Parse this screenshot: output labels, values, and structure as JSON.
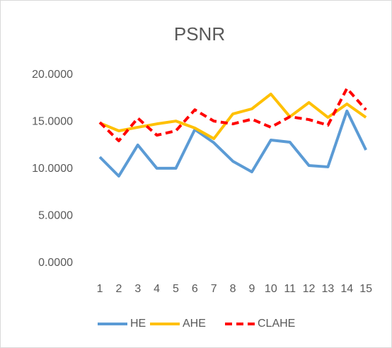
{
  "chart_data": {
    "type": "line",
    "title": "PSNR",
    "categories": [
      "1",
      "2",
      "3",
      "4",
      "5",
      "6",
      "7",
      "8",
      "9",
      "10",
      "11",
      "12",
      "13",
      "14",
      "15"
    ],
    "series": [
      {
        "name": "HE",
        "color": "#5b9bd5",
        "dash": false,
        "values": [
          11.28,
          9.25,
          12.56,
          10.08,
          10.08,
          14.2,
          12.8,
          10.83,
          9.7,
          13.08,
          12.86,
          10.38,
          10.23,
          16.17,
          12.03
        ]
      },
      {
        "name": "AHE",
        "color": "#ffc000",
        "dash": false,
        "values": [
          14.9,
          14.06,
          14.44,
          14.8,
          15.1,
          14.36,
          13.23,
          15.86,
          16.4,
          17.97,
          15.56,
          17.07,
          15.49,
          16.92,
          15.49
        ]
      },
      {
        "name": "CLAHE",
        "color": "#ff0000",
        "dash": true,
        "values": [
          14.96,
          13.0,
          15.41,
          13.6,
          14.06,
          16.3,
          15.1,
          14.8,
          15.3,
          14.44,
          15.56,
          15.26,
          14.66,
          18.57,
          16.3
        ]
      }
    ],
    "ylim": [
      0,
      20
    ],
    "yticks": [
      {
        "value": 0,
        "label": "0.0000"
      },
      {
        "value": 5,
        "label": "5.0000"
      },
      {
        "value": 10,
        "label": "10.0000"
      },
      {
        "value": 15,
        "label": "15.0000"
      },
      {
        "value": 20,
        "label": "20.0000"
      }
    ],
    "grid": false,
    "legend": "bottom"
  }
}
